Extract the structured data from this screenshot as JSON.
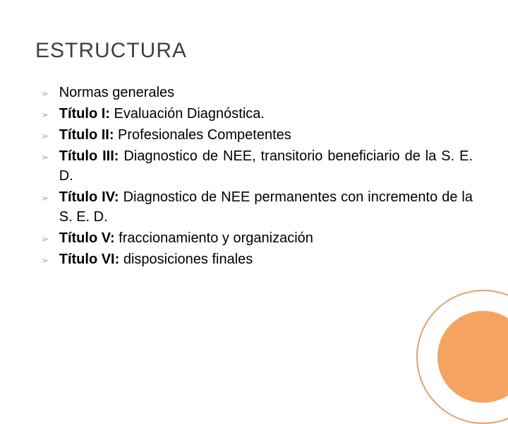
{
  "title": "ESTRUCTURA",
  "accent_color": "#e6a06a",
  "circle_fill": "#f4a460",
  "text_color": "#000000",
  "title_color": "#404040",
  "background_color": "#ffffff",
  "title_fontsize": 30,
  "body_fontsize": 20,
  "bullet_glyph": "➢",
  "items": [
    {
      "bold": "",
      "text": "Normas generales"
    },
    {
      "bold": "Título I:",
      "text": " Evaluación Diagnóstica."
    },
    {
      "bold": "Título II:",
      "text": "  Profesionales Competentes"
    },
    {
      "bold": "Título III:",
      "text": " Diagnostico de NEE, transitorio beneficiario de la S. E. D."
    },
    {
      "bold": "Título IV:",
      "text": " Diagnostico de NEE  permanentes con incremento de la S. E. D."
    },
    {
      "bold": "Título V:",
      "text": " fraccionamiento y organización"
    },
    {
      "bold": "Título VI:",
      "text": " disposiciones finales"
    }
  ]
}
